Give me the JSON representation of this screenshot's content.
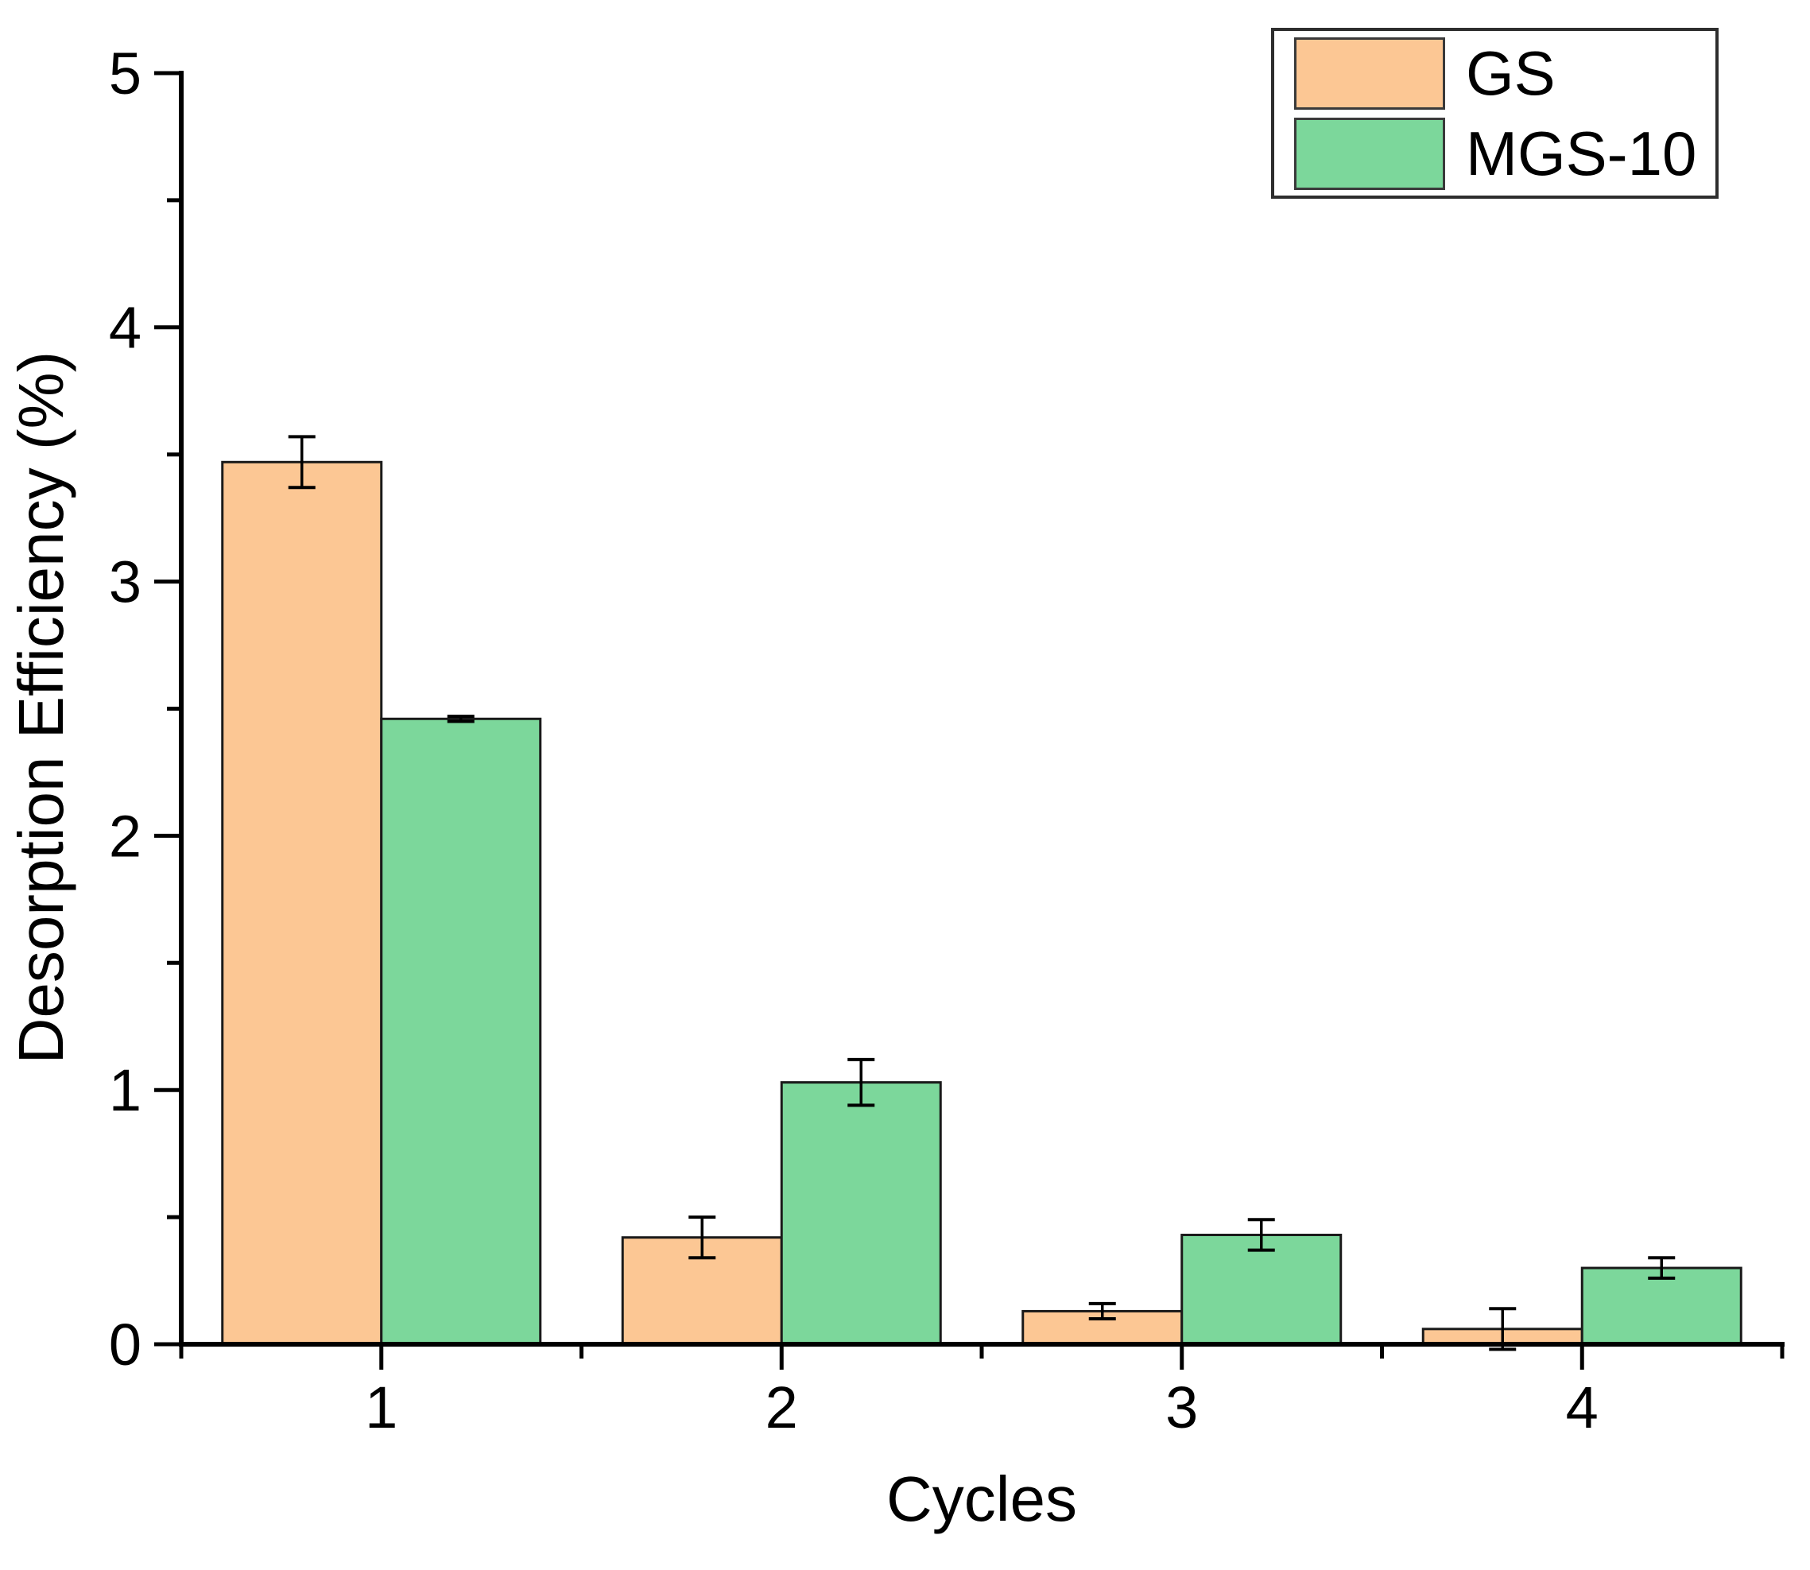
{
  "chart_data": {
    "type": "bar",
    "title": "",
    "xlabel": "Cycles",
    "ylabel": "Desorption Efficiency (%)",
    "categories": [
      "1",
      "2",
      "3",
      "4"
    ],
    "series": [
      {
        "name": "GS",
        "color": "#FCC794",
        "edge_color": "#1a1a1a",
        "values": [
          3.47,
          0.42,
          0.13,
          0.06
        ],
        "errors": [
          0.1,
          0.08,
          0.03,
          0.08
        ]
      },
      {
        "name": "MGS-10",
        "color": "#7CD79B",
        "edge_color": "#1a1a1a",
        "values": [
          2.46,
          1.03,
          0.43,
          0.3
        ],
        "errors": [
          0.01,
          0.09,
          0.06,
          0.04
        ]
      }
    ],
    "ylim": [
      0,
      5
    ],
    "yticks": [
      0,
      1,
      2,
      3,
      4,
      5
    ],
    "ytick_minor_step": 0.5,
    "grid": false,
    "error_bars": true,
    "legend_position": "top-right",
    "axis_color": "#000000",
    "text_color": "#000000",
    "background": "#ffffff"
  }
}
